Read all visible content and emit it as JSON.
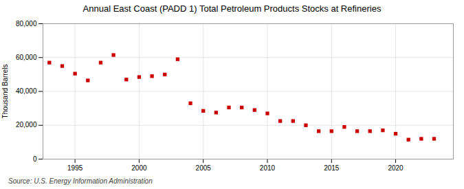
{
  "chart_data": {
    "type": "scatter",
    "title": "Annual East Coast (PADD 1) Total Petroleum Products Stocks at Refineries",
    "ylabel": "Thousand Barrels",
    "source": "Source: U.S. Energy Information Administration",
    "x": [
      1993,
      1994,
      1995,
      1996,
      1997,
      1998,
      1999,
      2000,
      2001,
      2002,
      2003,
      2004,
      2005,
      2006,
      2007,
      2008,
      2009,
      2010,
      2011,
      2012,
      2013,
      2014,
      2015,
      2016,
      2017,
      2018,
      2019,
      2020,
      2021,
      2022,
      2023
    ],
    "values": [
      57000,
      55000,
      50500,
      46500,
      57000,
      61500,
      47000,
      48500,
      49000,
      50000,
      59000,
      33000,
      28500,
      27500,
      30500,
      30500,
      29000,
      27000,
      22500,
      22500,
      20000,
      16500,
      16500,
      19000,
      16500,
      16500,
      17000,
      15000,
      11500,
      12000,
      12000
    ],
    "color": "#cc0000",
    "marker": "square",
    "grid": true,
    "xlim": [
      1992.5,
      2024.5
    ],
    "xticks": [
      1995,
      2000,
      2005,
      2010,
      2015,
      2020
    ],
    "ylim": [
      0,
      80000
    ],
    "yticks": [
      0,
      {
        "value": 20000,
        "label": "20,000"
      },
      {
        "value": 40000,
        "label": "40,000"
      },
      {
        "value": 60000,
        "label": "60,000"
      },
      {
        "value": 80000,
        "label": "80,000"
      }
    ]
  }
}
